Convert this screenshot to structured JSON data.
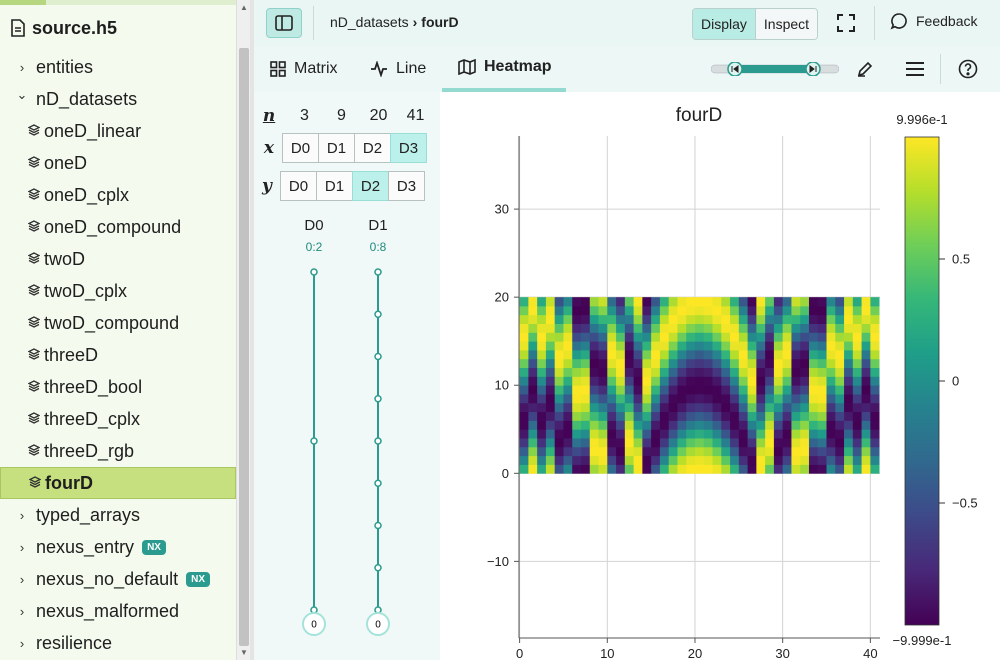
{
  "file": {
    "name": "source.h5"
  },
  "tree": [
    {
      "label": "entities",
      "kind": "group",
      "open": false,
      "depth": 0
    },
    {
      "label": "nD_datasets",
      "kind": "group",
      "open": true,
      "depth": 0
    },
    {
      "label": "oneD_linear",
      "kind": "dataset",
      "depth": 1
    },
    {
      "label": "oneD",
      "kind": "dataset",
      "depth": 1
    },
    {
      "label": "oneD_cplx",
      "kind": "dataset",
      "depth": 1
    },
    {
      "label": "oneD_compound",
      "kind": "dataset",
      "depth": 1
    },
    {
      "label": "twoD",
      "kind": "dataset",
      "depth": 1
    },
    {
      "label": "twoD_cplx",
      "kind": "dataset",
      "depth": 1
    },
    {
      "label": "twoD_compound",
      "kind": "dataset",
      "depth": 1
    },
    {
      "label": "threeD",
      "kind": "dataset",
      "depth": 1
    },
    {
      "label": "threeD_bool",
      "kind": "dataset",
      "depth": 1
    },
    {
      "label": "threeD_cplx",
      "kind": "dataset",
      "depth": 1
    },
    {
      "label": "threeD_rgb",
      "kind": "dataset",
      "depth": 1
    },
    {
      "label": "fourD",
      "kind": "dataset",
      "depth": 1,
      "selected": true
    },
    {
      "label": "typed_arrays",
      "kind": "group",
      "open": false,
      "depth": 0
    },
    {
      "label": "nexus_entry",
      "kind": "group",
      "open": false,
      "depth": 0,
      "badge": "NX"
    },
    {
      "label": "nexus_no_default",
      "kind": "group",
      "open": false,
      "depth": 0,
      "badge": "NX"
    },
    {
      "label": "nexus_malformed",
      "kind": "group",
      "open": false,
      "depth": 0
    },
    {
      "label": "resilience",
      "kind": "group",
      "open": false,
      "depth": 0
    }
  ],
  "breadcrumb": {
    "parent": "nD_datasets",
    "separator": "›",
    "current": "fourD"
  },
  "toolbar": {
    "display": "Display",
    "inspect": "Inspect",
    "feedback": "Feedback"
  },
  "tabs": {
    "matrix": "Matrix",
    "line": "Line",
    "heatmap": "Heatmap",
    "active": "heatmap"
  },
  "dims": {
    "n_label": "n",
    "x_label": "x",
    "y_label": "y",
    "sizes": [
      "3",
      "9",
      "20",
      "41"
    ],
    "x_buttons": [
      "D0",
      "D1",
      "D2",
      "D3"
    ],
    "x_selected": 3,
    "y_buttons": [
      "D0",
      "D1",
      "D2",
      "D3"
    ],
    "y_selected": 2,
    "sliders": [
      {
        "name": "D0",
        "range": "0:2",
        "value": "0",
        "stops": 3
      },
      {
        "name": "D1",
        "range": "0:8",
        "value": "0",
        "stops": 9
      }
    ]
  },
  "colors": {
    "accent": "#2b9b8f",
    "selected_row": "#c6e07f"
  },
  "chart_data": {
    "type": "heatmap",
    "title": "fourD",
    "x": {
      "ticks": [
        0,
        10,
        20,
        30,
        40
      ],
      "range": [
        0,
        41
      ]
    },
    "y": {
      "ticks": [
        -10,
        0,
        10,
        20,
        30
      ],
      "range": [
        0,
        20
      ]
    },
    "grid": true,
    "colormap": "viridis",
    "colorbar": {
      "max_label": "9.996e-1",
      "min_label": "−9.999e-1",
      "ticks": [
        "0.5",
        "0",
        "−0.5"
      ]
    },
    "shape": [
      20,
      41
    ]
  }
}
